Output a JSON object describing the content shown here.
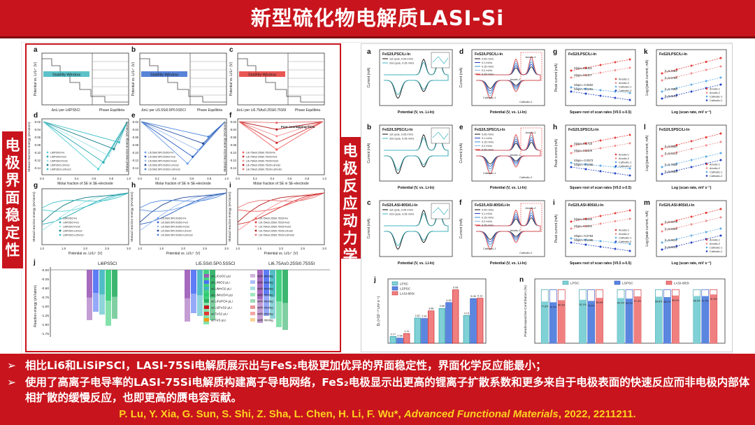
{
  "header": {
    "title": "新型硫化物电解质LASI-Si"
  },
  "left_tab": "电极界面稳定性",
  "right_tab": "电极反应动力学",
  "colors": {
    "brand_red": "#c8141c",
    "citation_yellow": "#ffd21f",
    "teal": "#3fb6c0",
    "blue": "#3b6fd1",
    "red": "#e53935"
  },
  "left_figure": {
    "panel_a": {
      "letter": "a",
      "ylabel": "Potential vs. Li/Li⁺ (V)",
      "xlabel": "ΔnLi per Li6PS5Cl",
      "xlabel2": "Phase Equilibria",
      "window_label": "Stability Window",
      "ticks": [
        "5",
        "4",
        "3",
        "2",
        "1",
        "0"
      ]
    },
    "panel_b": {
      "letter": "b",
      "ylabel": "Potential vs. Li/Li⁺ (V)",
      "xlabel": "ΔnLi per Li5.5Si0.5P0.5S5Cl",
      "xlabel2": "Phase Equilibria",
      "window_label": "Stability Window"
    },
    "panel_c": {
      "letter": "c",
      "ylabel": "Potential vs. Li/Li⁺ (V)",
      "xlabel": "ΔnLi per Li6.75As0.25Si0.75S5I",
      "xlabel2": "Phase Equilibria",
      "window_label": "Stability Window"
    },
    "panel_d": {
      "letter": "d",
      "ylabel": "Mutual reaction energy (eV/atom)",
      "xlabel": "Molar fraction of SE in SE-electrode",
      "legend": [
        "Li6PS5Cl-Fe",
        "Li6PS5Cl-FeS",
        "Li6PS5Cl-FeS2",
        "Li6PS5Cl-LiFeS2",
        "Li6PS5Cl-Li2FeS2"
      ],
      "yticks": [
        "-0.02",
        "-0.04",
        "-0.06",
        "-0.08",
        "-0.10",
        "-0.12",
        "-0.14"
      ],
      "xticks": [
        "0.0",
        "0.2",
        "0.4",
        "0.6",
        "0.8",
        "1.0"
      ]
    },
    "panel_e": {
      "letter": "e",
      "ylabel": "Mutual reaction energy (eV/atom)",
      "xlabel": "Molar fraction of SE in SE-electrode",
      "legend": [
        "Li5.5Si0.5P0.5S5Cl-Fe",
        "Li5.5Si0.5P0.5S5Cl-FeS",
        "Li5.5Si0.5P0.5S5Cl-FeS2",
        "Li5.5Si0.5P0.5S5Cl-LiFeS2",
        "Li5.5Si0.5P0.5S5Cl-Li2FeS2"
      ],
      "yticks": [
        "-0.02",
        "-0.04",
        "-0.06",
        "-0.08",
        "-0.10",
        "-0.12",
        "-0.14"
      ],
      "xticks": [
        "0.0",
        "0.2",
        "0.4",
        "0.6",
        "0.8",
        "1.0"
      ]
    },
    "panel_f": {
      "letter": "f",
      "ylabel": "Mutual reaction energy (eV/atom)",
      "xlabel": "Molar fraction of SE in SE-electrode",
      "annotation": "Four overlapping lines",
      "legend": [
        "Li6.75As0.25Si0.75S5I-Fe",
        "Li6.75As0.25Si0.75S5I-FeS",
        "Li6.75As0.25Si0.75S5I-FeS2",
        "Li6.75As0.25Si0.75S5I-LiFeS2",
        "Li6.75As0.25Si0.75S5I-Li2FeS2"
      ],
      "yticks": [
        "-0.02",
        "-0.04",
        "-0.06",
        "-0.08",
        "-0.10",
        "-0.12",
        "-0.14"
      ],
      "xticks": [
        "0.0",
        "0.2",
        "0.4",
        "0.6",
        "0.8",
        "1.0"
      ]
    },
    "panel_g": {
      "letter": "g",
      "ylabel": "Mutual reaction energy (eV/atom)",
      "xlabel": "Potential vs. Li/Li⁺ (V)",
      "legend": [
        "Li6PS5Cl-Fe",
        "Li6PS5Cl-FeS",
        "Li6PS5Cl-FeS2",
        "Li6PS5Cl-LiFeS2",
        "Li6PS5Cl-Li2FeS2"
      ],
      "xticks": [
        "1.0",
        "1.5",
        "2.0",
        "2.5",
        "3.0"
      ]
    },
    "panel_h": {
      "letter": "h",
      "ylabel": "Mutual reaction energy (eV/atom)",
      "xlabel": "Potential vs. Li/Li⁺ (V)",
      "legend": [
        "Li5.5Si0.5P0.5S5Cl-Fe",
        "Li5.5Si0.5P0.5S5Cl-FeS",
        "Li5.5Si0.5P0.5S5Cl-FeS2",
        "Li5.5Si0.5P0.5S5Cl-LiFeS2",
        "Li5.5Si0.5P0.5S5Cl-Li2FeS2"
      ],
      "xticks": [
        "1.0",
        "1.5",
        "2.0",
        "2.5",
        "3.0"
      ]
    },
    "panel_i": {
      "letter": "i",
      "ylabel": "Mutual reaction energy (eV/atom)",
      "xlabel": "Potential vs. Li/Li⁺ (V)",
      "legend": [
        "Li6.75As0.25Si0.75S5I-Fe",
        "Li6.75As0.25Si0.75S5I-FeS",
        "Li6.75As0.25Si0.75S5I-FeS2",
        "Li6.75As0.25Si0.75S5I-LiFeS2",
        "Li6.75As0.25Si0.75S5I-Li2FeS2"
      ],
      "xticks": [
        "1.0",
        "1.5",
        "2.0",
        "2.5",
        "3.0"
      ]
    },
    "panel_j": {
      "letter": "j",
      "ylabel": "Reaction energy (eV/atom)",
      "groups": [
        "Li6PS5Cl",
        "Li5.5Si0.5P0.5S5Cl",
        "Li6.75As0.25Si0.75S5I"
      ],
      "yticks": [
        "-0.00",
        "-0.25",
        "-0.50",
        "-0.75",
        "-1.00",
        "-1.25",
        "-1.50",
        "-1.75"
      ],
      "legend_left": [
        "at LiCoO2 μLi",
        "at LiNiO2 μLi",
        "at LiMnO2 μLi",
        "at LiMn2O4 μLi",
        "at LiFePO4 μLi",
        "at Li2FeS2 μLi",
        "at FeS2 μLi",
        "at FeS μLi"
      ],
      "legend_right": [
        "with mixing",
        "with mixing",
        "with mixing",
        "with mixing",
        "with mixing",
        "with mixing",
        "with mixing",
        "with mixing"
      ]
    }
  },
  "right_figure": {
    "cv_rows": [
      {
        "letter": "a",
        "title": "FeS2/LPSC/Li-In",
        "legend": [
          "1st cycle, 0.05 mV/s",
          "2nd cycle, 0.05 mV/s"
        ]
      },
      {
        "letter": "b",
        "title": "FeS2/LSPSC/Li-In",
        "legend": [
          "1st cycle, 0.05 mV/s",
          "2nd cycle, 0.05 mV/s"
        ]
      },
      {
        "letter": "c",
        "title": "FeS2/LASI-80Si/Li-In",
        "legend": [
          "1st cycle, 0.05 mV/s",
          "2nd cycle, 0.05 mV/s"
        ]
      }
    ],
    "rate_rows": [
      {
        "letter": "d",
        "title": "FeS2/LPSC/Li-In",
        "legend": [
          "0.05 mV/s",
          "0.1 mV/s",
          "0.15 mV/s",
          "0.2 mV/s",
          "0.25 mV/s"
        ],
        "labels": [
          "Anodic-1",
          "Anodic-2",
          "Cathodic-1",
          "Cathodic-2"
        ]
      },
      {
        "letter": "e",
        "title": "FeS2/LSPSC/Li-In",
        "legend": [
          "0.05 mV/s",
          "0.1 mV/s",
          "0.15 mV/s",
          "0.2 mV/s",
          "0.25 mV/s"
        ],
        "labels": [
          "Anodic-1",
          "Anodic-2",
          "Cathodic-1",
          "Cathodic-2"
        ]
      },
      {
        "letter": "f",
        "title": "FeS2/LASI-80Si/Li-In",
        "legend": [
          "0.05 mV/s",
          "0.1 mV/s",
          "0.15 mV/s",
          "0.2 mV/s",
          "0.25 mV/s"
        ],
        "labels": [
          "Anodic-1",
          "Anodic-2",
          "Cathodic-1",
          "Cathodic-2"
        ]
      }
    ],
    "slope_rows": [
      {
        "letter": "g",
        "title": "FeS2/LPSC/Li-In",
        "slopes": [
          "Slope=0.1491",
          "Slope=0.1327",
          "Slope=-0.0602",
          "Slope=-0.1261"
        ]
      },
      {
        "letter": "h",
        "title": "FeS2/LSPSC/Li-In",
        "slopes": [
          "Slope=0.1718",
          "Slope=0.1509",
          "Slope=-0.0573",
          "Slope=-0.1255"
        ]
      },
      {
        "letter": "i",
        "title": "FeS2/LASI-80Si/Li-In",
        "slopes": [
          "Slope=0.1936",
          "Slope=0.1582",
          "Slope=-0.0763",
          "Slope=-0.1465"
        ]
      }
    ],
    "log_rows": [
      {
        "letter": "k",
        "title": "FeS2/LPSC/Li-In",
        "b_values": [
          "b=0.3483",
          "b=0.5795",
          "b=0.7666",
          "b=0.6103"
        ]
      },
      {
        "letter": "l",
        "title": "FeS2/LSPSC/Li-In",
        "b_values": [
          "b=0.5956",
          "b=0.6313",
          "b=0.7938",
          "b=0.6953"
        ]
      },
      {
        "letter": "m",
        "title": "FeS2/LASI-80Si/Li-In",
        "b_values": [
          "b=0.9079",
          "b=0.8303",
          "b=0.8612",
          "b=0.8011"
        ]
      }
    ],
    "cv_xlabel": "Potential (V, vs. Li-In)",
    "cv_ylabel": "Current (mA)",
    "slope_xlabel": "Square root of scan rates (V0.5 s-0.5)",
    "slope_ylabel": "Peak current (mA)",
    "log_xlabel": "Log (scan rate, mV s⁻¹)",
    "log_ylabel": "Log (peak current, mA)",
    "legend_series": [
      "Anodic-1",
      "Anodic-2",
      "Cathodic-1",
      "Cathodic-2"
    ],
    "panel_j": {
      "letter": "j",
      "ylabel": "Dₗᵢ (×10⁻¹⁰ cm² s⁻¹)",
      "legend": [
        "LPSC",
        "LSPSC",
        "LASI-80Si"
      ]
    },
    "panel_n": {
      "letter": "n",
      "ylabel": "Pseudocapacitive Contribution (%)",
      "legend": [
        "LPSC",
        "LSPSC",
        "LASI-80Si"
      ]
    }
  },
  "chart_data": [
    {
      "type": "bar",
      "title": "",
      "ylabel": "Dₗᵢ (×10⁻¹⁰ cm² s⁻¹)",
      "categories": [
        "1",
        "2",
        "3",
        "4"
      ],
      "series": [
        {
          "name": "LPSC",
          "values": [
            0.77,
            2.87,
            3.96,
            3.15
          ]
        },
        {
          "name": "LSPSC",
          "values": [
            0.58,
            2.81,
            4.63,
            5.08
          ]
        },
        {
          "name": "LASI-80Si",
          "values": [
            1.11,
            3.68,
            6.08,
            5.12
          ]
        }
      ],
      "ylim": [
        0,
        7
      ]
    },
    {
      "type": "bar",
      "title": "",
      "ylabel": "Pseudocapacitive Contribution (%)",
      "categories": [
        "0.05",
        "0.1",
        "0.15",
        "0.2",
        "0.25"
      ],
      "series": [
        {
          "name": "LPSC",
          "values": [
            77.8,
            81.1,
            84.2,
            86.8,
            88.0
          ]
        },
        {
          "name": "LSPSC",
          "values": [
            76.4,
            78.9,
            83.2,
            86.0,
            87.9
          ]
        },
        {
          "name": "LASI-80Si",
          "values": [
            80.3,
            84.6,
            87.4,
            89.0,
            91.0
          ]
        }
      ],
      "ylim": [
        0,
        120
      ]
    }
  ],
  "bullets": [
    {
      "arrow": "➢",
      "text": "相比Li6和LiSiPSCl，LASI-75Si电解质展示出与FeS₂电极更加优异的界面稳定性，界面化学反应能最小；"
    },
    {
      "arrow": "➢",
      "text": "使用了高离子电导率的LASI-75Si电解质构建离子导电网络，FeS₂电极显示出更高的锂离子扩散系数和更多来自于电极表面的快速反应而非电极内部体相扩散的缓慢反应，也即更高的赝电容贡献。"
    }
  ],
  "citation": {
    "authors": "P. Lu,  Y. Xia, G. Sun, S. Shi, Z. Sha, L. Chen, H. Li, F. Wu*, ",
    "journal": "Advanced Functional Materials",
    "tail": ", 2022, 2211211."
  }
}
